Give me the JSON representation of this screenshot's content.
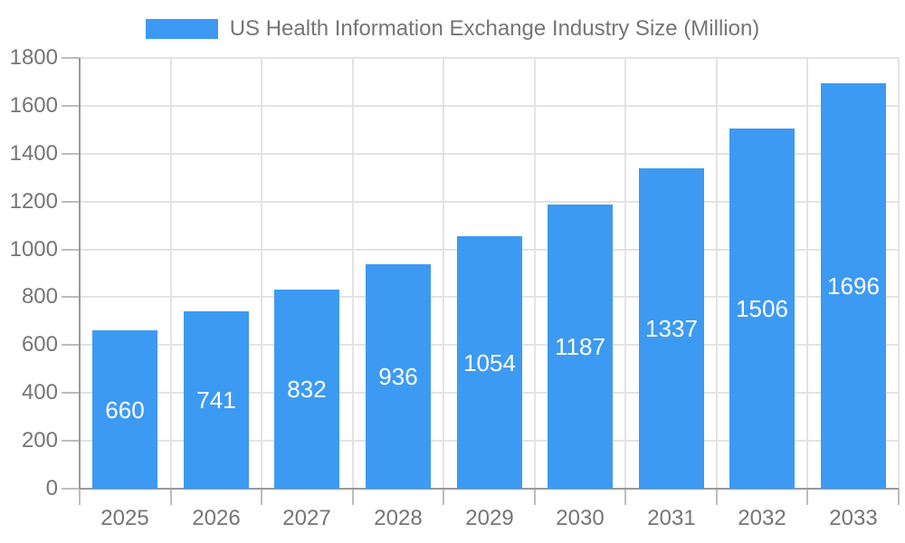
{
  "chart_data": {
    "type": "bar",
    "title": "US Health Information Exchange Industry Size (Million)",
    "legend_entries": [
      "US Health Information Exchange Industry Size (Million)"
    ],
    "legend_position": "top-center",
    "categories": [
      "2025",
      "2026",
      "2027",
      "2028",
      "2029",
      "2030",
      "2031",
      "2032",
      "2033"
    ],
    "values": [
      660,
      741,
      832,
      936,
      1054,
      1187,
      1337,
      1506,
      1696
    ],
    "value_labels": [
      "660",
      "741",
      "832",
      "936",
      "1054",
      "1187",
      "1337",
      "1506",
      "1696"
    ],
    "xlabel": "",
    "ylabel": "",
    "ylim": [
      0,
      1800
    ],
    "ytick_step": 200,
    "ytick_labels": [
      "0",
      "200",
      "400",
      "600",
      "800",
      "1000",
      "1200",
      "1400",
      "1600",
      "1800"
    ],
    "grid": true,
    "colors": {
      "bar": "#3D9AF2",
      "value_label": "#FFFFFF",
      "grid_line": "#E3E3E3",
      "axis_line": "#999999",
      "tick_mark": "#BDBDBD",
      "tick_label": "#757575",
      "title": "#757575",
      "background": "#FFFFFF"
    }
  }
}
